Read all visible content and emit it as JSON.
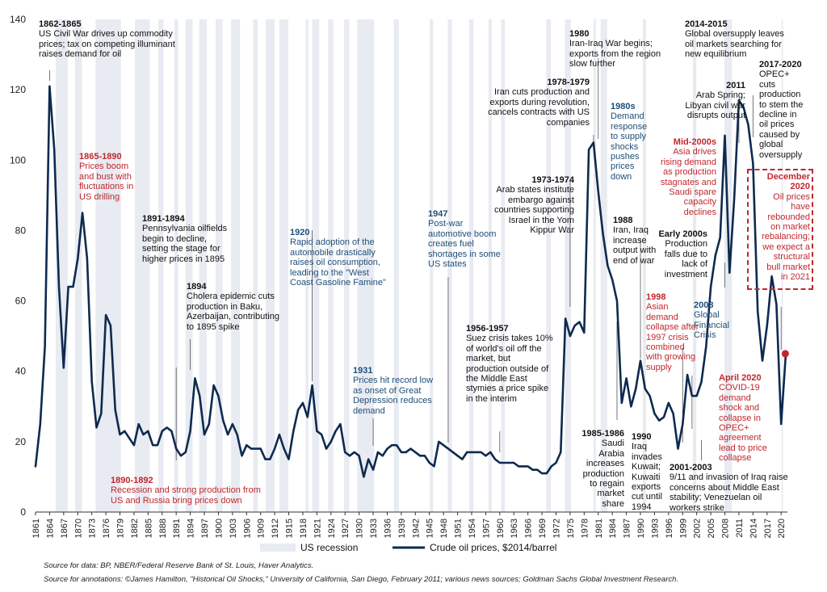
{
  "colors": {
    "line": "#0d2a4f",
    "recession": "#e8ebf1",
    "marker": "#c0272d",
    "annotation_red": "#c0272d",
    "annotation_blue": "#1f4e79",
    "annotation_black": "#111111"
  },
  "legend": {
    "recession_label": "US recession",
    "price_label": "Crude oil prices, $2014/barrel"
  },
  "sources": {
    "data": "Source for data: BP, NBER/Federal Reserve Bank of St. Louis, Haver Analytics.",
    "annotations": "Source for annotations: ©James Hamilton, \"Historical Oil Shocks,\" University of California, San Diego, February 2011; various news sources; Goldman Sachs Global Investment Research."
  },
  "annotations": [
    {
      "id": "civil-war",
      "color": "black",
      "year": "1862-1865",
      "text": "US Civil War drives up commodity\nprices; tax on competing illuminant\nraises demand for oil"
    },
    {
      "id": "boom-bust",
      "color": "red",
      "year": "1865-1890",
      "text": "Prices boom\nand bust with\nfluctuations in\nUS drilling"
    },
    {
      "id": "pennsylvania",
      "color": "black",
      "year": "1891-1894",
      "text": "Pennsylvania oilfields\nbegin to decline,\nsetting the stage for\nhigher prices in 1895"
    },
    {
      "id": "cholera",
      "color": "black",
      "year": "1894",
      "text": "Cholera epidemic cuts\nproduction in Baku,\nAzerbaijan, contributing\nto 1895 spike"
    },
    {
      "id": "us-russia",
      "color": "red",
      "year": "1890-1892",
      "text": "Recession and strong production from\nUS and Russia bring prices down"
    },
    {
      "id": "automobile",
      "color": "blue",
      "year": "1920",
      "text": "Rapid adoption of the\nautomobile drastically\nraises oil consumption,\nleading to the \"West\nCoast Gasoline Famine\""
    },
    {
      "id": "great-depression",
      "color": "blue",
      "year": "1931",
      "text": "Prices hit record low\nas onset of Great\nDepression reduces\ndemand"
    },
    {
      "id": "post-war",
      "color": "blue",
      "year": "1947",
      "text": "Post-war\nautomotive boom\ncreates fuel\nshortages in some\nUS states"
    },
    {
      "id": "suez",
      "color": "black",
      "year": "1956-1957",
      "text": "Suez crisis takes 10%\nof world's oil off the\nmarket, but\nproduction outside of\nthe Middle East\nstymies a price spike\nin the interim"
    },
    {
      "id": "embargo",
      "color": "black",
      "year": "1973-1974",
      "text": "Arab states institute\nembargo against\ncountries supporting\nIsrael in the Yom\nKippur War"
    },
    {
      "id": "iran-revolution",
      "color": "black",
      "year": "1978-1979",
      "text": "Iran cuts production and\nexports during revolution,\ncancels contracts with US\ncompanies"
    },
    {
      "id": "iran-iraq",
      "color": "black",
      "year": "1980",
      "text": "Iran-Iraq War begins;\nexports from the region\nslow further"
    },
    {
      "id": "demand-1980s",
      "color": "blue",
      "year": "1980s",
      "text": "Demand\nresponse\nto supply\nshocks\npushes\nprices\ndown"
    },
    {
      "id": "iran-iraq-1988",
      "color": "black",
      "year": "1988",
      "text": "Iran, Iraq\nincrease\noutput with\nend of war"
    },
    {
      "id": "saudi",
      "color": "black",
      "year": "1985-1986",
      "text": "Saudi\nArabia\nincreases\nproduction\nto regain\nmarket\nshare"
    },
    {
      "id": "kuwait",
      "color": "black",
      "year": "1990",
      "text": "Iraq\ninvades\nKuwait;\nKuwaiti\nexports\ncut until\n1994"
    },
    {
      "id": "asian-crisis",
      "color": "red",
      "year": "1998",
      "text": "Asian\ndemand\ncollapse after\n1997 crisis\ncombined\nwith growing\nsupply"
    },
    {
      "id": "early-2000s",
      "color": "black",
      "year": "Early 2000s",
      "text": "Production\nfalls due to\nlack of\ninvestment"
    },
    {
      "id": "mid-2000s",
      "color": "red",
      "year": "Mid-2000s",
      "text": "Asia drives\nrising demand\nas production\nstagnates and\nSaudi spare\ncapacity\ndeclines"
    },
    {
      "id": "gfc",
      "color": "blue",
      "year": "2008",
      "text": "Global\nFinancial\nCrisis"
    },
    {
      "id": "arab-spring",
      "color": "black",
      "year": "2011",
      "text": "Arab Spring;\nLibyan civil war\ndisrupts output"
    },
    {
      "id": "oversupply",
      "color": "black",
      "year": "2014-2015",
      "text": "Global oversupply leaves\noil markets searching for\nnew equilibrium"
    },
    {
      "id": "opec",
      "color": "black",
      "year": "2017-2020",
      "text": "OPEC+\ncuts\nproduction\nto stem the\ndecline in\noil prices\ncaused by\nglobal\noversupply"
    },
    {
      "id": "dec-2020",
      "color": "red",
      "year": "December\n2020",
      "text": "Oil prices\nhave\nrebounded\non market\nrebalancing;\nwe expect a\nstructural\nbull market\nin 2021"
    },
    {
      "id": "911",
      "color": "black",
      "year": "2001-2003",
      "text": "9/11 and invasion of Iraq raise\nconcerns about Middle East\nstability; Venezuelan oil\nworkers strike"
    },
    {
      "id": "covid",
      "color": "red",
      "year": "April 2020",
      "text": "COVID-19\ndemand\nshock and\ncollapse in\nOPEC+\nagreement\nlead to price\ncollapse"
    }
  ],
  "chart_data": {
    "type": "line",
    "xlabel": "",
    "ylabel": "",
    "xlim": [
      1861,
      2021
    ],
    "ylim": [
      0,
      140
    ],
    "y_ticks": [
      0,
      20,
      40,
      60,
      80,
      100,
      120,
      140
    ],
    "x_ticks": [
      1861,
      1864,
      1867,
      1870,
      1873,
      1876,
      1879,
      1882,
      1885,
      1888,
      1891,
      1894,
      1897,
      1900,
      1903,
      1906,
      1909,
      1912,
      1915,
      1918,
      1921,
      1924,
      1927,
      1930,
      1933,
      1936,
      1939,
      1942,
      1945,
      1948,
      1951,
      1954,
      1957,
      1960,
      1963,
      1966,
      1969,
      1972,
      1975,
      1978,
      1981,
      1984,
      1987,
      1990,
      1993,
      1996,
      1999,
      2002,
      2005,
      2008,
      2011,
      2014,
      2017,
      2020
    ],
    "legend_position": "bottom",
    "series": [
      {
        "name": "Crude oil prices, $2014/barrel",
        "points": [
          [
            1861,
            13
          ],
          [
            1862,
            25
          ],
          [
            1863,
            47
          ],
          [
            1864,
            121
          ],
          [
            1865,
            103
          ],
          [
            1866,
            64
          ],
          [
            1867,
            41
          ],
          [
            1868,
            64
          ],
          [
            1869,
            64
          ],
          [
            1870,
            72
          ],
          [
            1871,
            85
          ],
          [
            1872,
            72
          ],
          [
            1873,
            37
          ],
          [
            1874,
            24
          ],
          [
            1875,
            28
          ],
          [
            1876,
            56
          ],
          [
            1877,
            53
          ],
          [
            1878,
            29
          ],
          [
            1879,
            22
          ],
          [
            1880,
            23
          ],
          [
            1881,
            21
          ],
          [
            1882,
            19
          ],
          [
            1883,
            25
          ],
          [
            1884,
            22
          ],
          [
            1885,
            23
          ],
          [
            1886,
            19
          ],
          [
            1887,
            19
          ],
          [
            1888,
            23
          ],
          [
            1889,
            24
          ],
          [
            1890,
            23
          ],
          [
            1891,
            18
          ],
          [
            1892,
            16
          ],
          [
            1893,
            17
          ],
          [
            1894,
            23
          ],
          [
            1895,
            38
          ],
          [
            1896,
            33
          ],
          [
            1897,
            22
          ],
          [
            1898,
            25
          ],
          [
            1899,
            36
          ],
          [
            1900,
            33
          ],
          [
            1901,
            26
          ],
          [
            1902,
            22
          ],
          [
            1903,
            25
          ],
          [
            1904,
            22
          ],
          [
            1905,
            16
          ],
          [
            1906,
            19
          ],
          [
            1907,
            18
          ],
          [
            1908,
            18
          ],
          [
            1909,
            18
          ],
          [
            1910,
            15
          ],
          [
            1911,
            15
          ],
          [
            1912,
            18
          ],
          [
            1913,
            22
          ],
          [
            1914,
            18
          ],
          [
            1915,
            15
          ],
          [
            1916,
            23
          ],
          [
            1917,
            29
          ],
          [
            1918,
            31
          ],
          [
            1919,
            27
          ],
          [
            1920,
            36
          ],
          [
            1921,
            23
          ],
          [
            1922,
            22
          ],
          [
            1923,
            18
          ],
          [
            1924,
            20
          ],
          [
            1925,
            23
          ],
          [
            1926,
            25
          ],
          [
            1927,
            17
          ],
          [
            1928,
            16
          ],
          [
            1929,
            17
          ],
          [
            1930,
            16
          ],
          [
            1931,
            10
          ],
          [
            1932,
            15
          ],
          [
            1933,
            12
          ],
          [
            1934,
            17
          ],
          [
            1935,
            16
          ],
          [
            1936,
            18
          ],
          [
            1937,
            19
          ],
          [
            1938,
            19
          ],
          [
            1939,
            17
          ],
          [
            1940,
            17
          ],
          [
            1941,
            18
          ],
          [
            1942,
            17
          ],
          [
            1943,
            16
          ],
          [
            1944,
            16
          ],
          [
            1945,
            14
          ],
          [
            1946,
            13
          ],
          [
            1947,
            20
          ],
          [
            1948,
            19
          ],
          [
            1949,
            18
          ],
          [
            1950,
            17
          ],
          [
            1951,
            16
          ],
          [
            1952,
            15
          ],
          [
            1953,
            17
          ],
          [
            1954,
            17
          ],
          [
            1955,
            17
          ],
          [
            1956,
            17
          ],
          [
            1957,
            16
          ],
          [
            1958,
            17
          ],
          [
            1959,
            15
          ],
          [
            1960,
            14
          ],
          [
            1961,
            14
          ],
          [
            1962,
            14
          ],
          [
            1963,
            14
          ],
          [
            1964,
            13
          ],
          [
            1965,
            13
          ],
          [
            1966,
            13
          ],
          [
            1967,
            12
          ],
          [
            1968,
            12
          ],
          [
            1969,
            11
          ],
          [
            1970,
            11
          ],
          [
            1971,
            13
          ],
          [
            1972,
            14
          ],
          [
            1973,
            17
          ],
          [
            1974,
            55
          ],
          [
            1975,
            50
          ],
          [
            1976,
            53
          ],
          [
            1977,
            54
          ],
          [
            1978,
            51
          ],
          [
            1979,
            103
          ],
          [
            1980,
            105
          ],
          [
            1981,
            91
          ],
          [
            1982,
            79
          ],
          [
            1983,
            70
          ],
          [
            1984,
            66
          ],
          [
            1985,
            60
          ],
          [
            1986,
            31
          ],
          [
            1987,
            38
          ],
          [
            1988,
            30
          ],
          [
            1989,
            35
          ],
          [
            1990,
            43
          ],
          [
            1991,
            35
          ],
          [
            1992,
            33
          ],
          [
            1993,
            28
          ],
          [
            1994,
            26
          ],
          [
            1995,
            27
          ],
          [
            1996,
            31
          ],
          [
            1997,
            28
          ],
          [
            1998,
            18
          ],
          [
            1999,
            25
          ],
          [
            2000,
            39
          ],
          [
            2001,
            33
          ],
          [
            2002,
            33
          ],
          [
            2003,
            37
          ],
          [
            2004,
            47
          ],
          [
            2005,
            64
          ],
          [
            2006,
            73
          ],
          [
            2007,
            78
          ],
          [
            2008,
            107
          ],
          [
            2009,
            68
          ],
          [
            2010,
            89
          ],
          [
            2011,
            117
          ],
          [
            2012,
            115
          ],
          [
            2013,
            110
          ],
          [
            2014,
            99
          ],
          [
            2015,
            57
          ],
          [
            2016,
            43
          ],
          [
            2017,
            53
          ],
          [
            2018,
            67
          ],
          [
            2019,
            59
          ],
          [
            2020,
            25
          ],
          [
            2021,
            45
          ]
        ]
      }
    ],
    "recessions": [
      [
        1865.3,
        1867.9
      ],
      [
        1869.4,
        1870.9
      ],
      [
        1873.8,
        1879.2
      ],
      [
        1882.2,
        1885.4
      ],
      [
        1887.2,
        1888.3
      ],
      [
        1890.6,
        1891.4
      ],
      [
        1893.0,
        1894.5
      ],
      [
        1895.9,
        1897.5
      ],
      [
        1899.4,
        1900.9
      ],
      [
        1902.7,
        1904.6
      ],
      [
        1907.4,
        1908.4
      ],
      [
        1910.1,
        1912.0
      ],
      [
        1913.0,
        1914.9
      ],
      [
        1918.6,
        1919.2
      ],
      [
        1920.0,
        1921.5
      ],
      [
        1923.4,
        1924.5
      ],
      [
        1926.8,
        1927.9
      ],
      [
        1929.6,
        1933.2
      ],
      [
        1937.4,
        1938.5
      ],
      [
        1945.1,
        1945.8
      ],
      [
        1948.9,
        1949.8
      ],
      [
        1953.5,
        1954.4
      ],
      [
        1957.6,
        1958.3
      ],
      [
        1960.3,
        1961.1
      ],
      [
        1969.9,
        1970.9
      ],
      [
        1973.9,
        1975.2
      ],
      [
        1980.0,
        1980.5
      ],
      [
        1981.5,
        1982.9
      ],
      [
        1990.5,
        1991.2
      ],
      [
        2001.2,
        2001.9
      ],
      [
        2007.9,
        2009.5
      ],
      [
        2020.1,
        2020.4
      ]
    ],
    "highlight_point": {
      "x": 2020.9,
      "y": 45
    }
  }
}
